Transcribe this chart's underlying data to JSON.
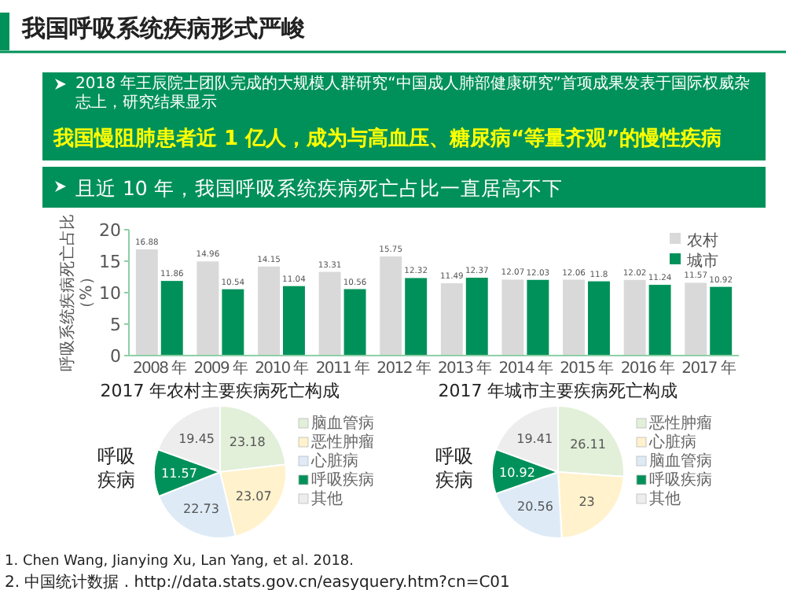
{
  "chart_data": [
    {
      "type": "other",
      "title": "我国呼吸系统疾病形式严峻",
      "annotations": [
        "2018 年王辰院士团队完成的大规模人群研究“中国成人肺部健康研究”首项成果发表于国际权威杂志上，研究结果显示",
        "我国慢阻肺患者近 1 亿人，成为与高血压、糖尿病“等量齐观”的慢性疾病",
        "1. Chen Wang, Jianying Xu, Lan Yang, et al. 2018.",
        "2. 中国统计数据 . http://data.stats.gov.cn/easyquery.htm?cn=C01"
      ]
    },
    {
      "type": "bar",
      "title": "且近 10 年，我国呼吸系统疾病死亡占比一直居高不下",
      "ylabel": "呼吸系统疾病死亡占比（%）",
      "categories": [
        "2008 年",
        "2009 年",
        "2010 年",
        "2011 年",
        "2012 年",
        "2013 年",
        "2014 年",
        "2015 年",
        "2016 年",
        "2017 年"
      ],
      "series": [
        {
          "name": "农村",
          "color": "#d9d9d9",
          "values": [
            16.88,
            14.96,
            14.15,
            13.31,
            15.75,
            11.49,
            12.07,
            12.06,
            12.02,
            11.57
          ]
        },
        {
          "name": "城市",
          "color": "#00915a",
          "values": [
            11.86,
            10.54,
            11.04,
            10.56,
            12.32,
            12.37,
            12.03,
            11.8,
            11.24,
            10.92
          ]
        }
      ],
      "ylim": [
        0,
        20
      ],
      "yticks": [
        0,
        5,
        10,
        15,
        20
      ],
      "data_labels": true,
      "legend": "top right"
    },
    {
      "type": "pie",
      "title": "2017 年农村主要疾病死亡构成",
      "categories": [
        "脑血管病",
        "恶性肿瘤",
        "心脏病",
        "呼吸疾病",
        "其他"
      ],
      "values": [
        23.18,
        23.07,
        22.73,
        11.57,
        19.45
      ],
      "colors": [
        "#e2efd9",
        "#fff2cc",
        "#deebf7",
        "#00915a",
        "#ededed"
      ],
      "data_labels": true,
      "legend": "right",
      "annotations": [
        "呼吸疾病"
      ]
    },
    {
      "type": "pie",
      "title": "2017 年城市主要疾病死亡构成",
      "categories": [
        "恶性肿瘤",
        "心脏病",
        "脑血管病",
        "呼吸疾病",
        "其他"
      ],
      "values": [
        26.11,
        23,
        20.56,
        10.92,
        19.41
      ],
      "colors": [
        "#e2efd9",
        "#fff2cc",
        "#deebf7",
        "#00915a",
        "#ededed"
      ],
      "data_labels": true,
      "legend": "right",
      "annotations": [
        "呼吸疾病"
      ]
    }
  ]
}
